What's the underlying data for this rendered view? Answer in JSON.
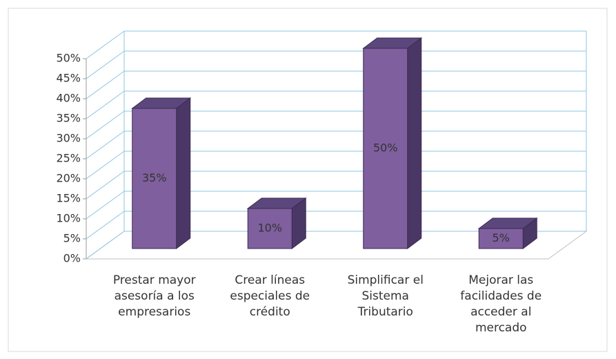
{
  "chart_data": {
    "type": "bar3d",
    "categories": [
      "Prestar mayor asesoría a los empresarios",
      "Crear líneas especiales de crédito",
      "Simplificar el Sistema Tributario",
      "Mejorar las facilidades de acceder al mercado"
    ],
    "values": [
      35,
      10,
      50,
      5
    ],
    "value_labels": [
      "35%",
      "10%",
      "50%",
      "5%"
    ],
    "color": "#7f5f9e",
    "ylim": [
      0,
      50
    ],
    "yticks": [
      {
        "value": 0,
        "label": "0%"
      },
      {
        "value": 5,
        "label": "5%"
      },
      {
        "value": 10,
        "label": "10%"
      },
      {
        "value": 15,
        "label": "15%"
      },
      {
        "value": 20,
        "label": "20%"
      },
      {
        "value": 25,
        "label": "25%"
      },
      {
        "value": 30,
        "label": "30%"
      },
      {
        "value": 35,
        "label": "35%"
      },
      {
        "value": 40,
        "label": "40%"
      },
      {
        "value": 45,
        "label": "45%"
      },
      {
        "value": 50,
        "label": "50%"
      }
    ],
    "grid": true
  }
}
